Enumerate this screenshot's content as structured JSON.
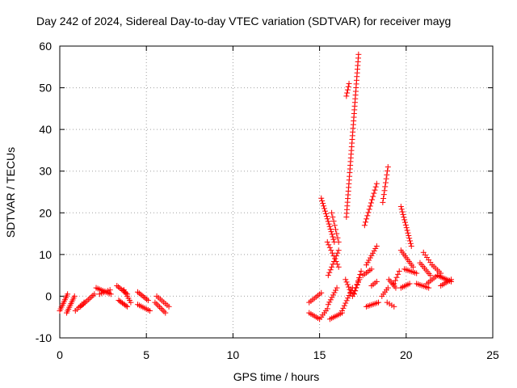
{
  "chart_data": {
    "type": "scatter",
    "title": "Day 242 of 2024, Sidereal Day-to-day VTEC variation (SDTVAR) for receiver mayg",
    "xlabel": "GPS time / hours",
    "ylabel": "SDTVAR / TECUs",
    "xlim": [
      0,
      25
    ],
    "ylim": [
      -10,
      60
    ],
    "xticks": [
      0,
      5,
      10,
      15,
      20,
      25
    ],
    "yticks": [
      -10,
      0,
      10,
      20,
      30,
      40,
      50,
      60
    ],
    "grid": true,
    "marker": "plus",
    "color": "#ff0000",
    "tracks": [
      {
        "x0": 0.0,
        "x1": 0.45,
        "y0": -3.5,
        "y1": 0.5,
        "n": 10
      },
      {
        "x0": 0.4,
        "x1": 0.85,
        "y0": -4.0,
        "y1": 0.0,
        "n": 10
      },
      {
        "x0": 0.9,
        "x1": 1.4,
        "y0": -3.5,
        "y1": -1.5,
        "n": 6
      },
      {
        "x0": 1.2,
        "x1": 2.0,
        "y0": -2.5,
        "y1": 0.5,
        "n": 10
      },
      {
        "x0": 2.1,
        "x1": 2.95,
        "y0": 2.0,
        "y1": 0.5,
        "n": 10
      },
      {
        "x0": 2.3,
        "x1": 2.9,
        "y0": 0.5,
        "y1": 1.5,
        "n": 6
      },
      {
        "x0": 3.3,
        "x1": 3.9,
        "y0": 2.5,
        "y1": 0.5,
        "n": 8
      },
      {
        "x0": 3.4,
        "x1": 3.9,
        "y0": -1.0,
        "y1": -2.5,
        "n": 8
      },
      {
        "x0": 3.7,
        "x1": 4.1,
        "y0": 1.5,
        "y1": -1.5,
        "n": 7
      },
      {
        "x0": 4.5,
        "x1": 5.1,
        "y0": 1.0,
        "y1": -1.0,
        "n": 8
      },
      {
        "x0": 4.5,
        "x1": 5.2,
        "y0": -2.0,
        "y1": -3.5,
        "n": 8
      },
      {
        "x0": 5.5,
        "x1": 6.1,
        "y0": -1.5,
        "y1": -4.0,
        "n": 8
      },
      {
        "x0": 5.6,
        "x1": 6.3,
        "y0": 0.0,
        "y1": -2.5,
        "n": 8
      },
      {
        "x0": 14.4,
        "x1": 15.1,
        "y0": -1.5,
        "y1": 0.8,
        "n": 8
      },
      {
        "x0": 14.4,
        "x1": 15.0,
        "y0": -4.0,
        "y1": -5.5,
        "n": 7
      },
      {
        "x0": 15.1,
        "x1": 15.85,
        "y0": 23.5,
        "y1": 13.0,
        "n": 18
      },
      {
        "x0": 15.45,
        "x1": 16.1,
        "y0": 13.0,
        "y1": 7.0,
        "n": 10
      },
      {
        "x0": 15.5,
        "x1": 16.1,
        "y0": 5.0,
        "y1": 11.0,
        "n": 10
      },
      {
        "x0": 15.7,
        "x1": 16.1,
        "y0": 20.0,
        "y1": 13.0,
        "n": 8
      },
      {
        "x0": 15.5,
        "x1": 16.0,
        "y0": -2.0,
        "y1": 2.0,
        "n": 8
      },
      {
        "x0": 15.6,
        "x1": 16.3,
        "y0": -5.5,
        "y1": -4.0,
        "n": 8
      },
      {
        "x0": 15.1,
        "x1": 15.45,
        "y0": -5.0,
        "y1": -3.0,
        "n": 5
      },
      {
        "x0": 16.3,
        "x1": 16.9,
        "y0": -3.5,
        "y1": 2.0,
        "n": 10
      },
      {
        "x0": 16.5,
        "x1": 16.8,
        "y0": 4.0,
        "y1": 1.0,
        "n": 6
      },
      {
        "x0": 16.9,
        "x1": 17.3,
        "y0": 0.0,
        "y1": 4.0,
        "n": 7
      },
      {
        "x0": 16.55,
        "x1": 17.25,
        "y0": 19.0,
        "y1": 58.0,
        "n": 45
      },
      {
        "x0": 16.55,
        "x1": 16.7,
        "y0": 48.0,
        "y1": 51.0,
        "n": 5
      },
      {
        "x0": 17.0,
        "x1": 17.4,
        "y0": 0.5,
        "y1": 6.0,
        "n": 8
      },
      {
        "x0": 17.6,
        "x1": 18.3,
        "y0": 17.0,
        "y1": 27.0,
        "n": 14
      },
      {
        "x0": 17.5,
        "x1": 18.0,
        "y0": 5.0,
        "y1": 6.5,
        "n": 6
      },
      {
        "x0": 17.7,
        "x1": 18.3,
        "y0": 7.5,
        "y1": 12.0,
        "n": 9
      },
      {
        "x0": 17.7,
        "x1": 18.4,
        "y0": -2.5,
        "y1": -1.5,
        "n": 8
      },
      {
        "x0": 18.0,
        "x1": 18.3,
        "y0": 2.5,
        "y1": 3.5,
        "n": 4
      },
      {
        "x0": 18.65,
        "x1": 18.95,
        "y0": 22.5,
        "y1": 31.0,
        "n": 10
      },
      {
        "x0": 18.6,
        "x1": 18.95,
        "y0": 0.0,
        "y1": 2.0,
        "n": 5
      },
      {
        "x0": 19.0,
        "x1": 19.4,
        "y0": 4.0,
        "y1": 2.0,
        "n": 6
      },
      {
        "x0": 18.9,
        "x1": 19.3,
        "y0": -1.5,
        "y1": -2.5,
        "n": 4
      },
      {
        "x0": 19.3,
        "x1": 19.6,
        "y0": 3.0,
        "y1": 6.0,
        "n": 5
      },
      {
        "x0": 19.7,
        "x1": 20.3,
        "y0": 21.5,
        "y1": 12.0,
        "n": 16
      },
      {
        "x0": 19.7,
        "x1": 20.4,
        "y0": 11.0,
        "y1": 7.0,
        "n": 10
      },
      {
        "x0": 19.7,
        "x1": 20.2,
        "y0": 2.0,
        "y1": 3.0,
        "n": 6
      },
      {
        "x0": 19.9,
        "x1": 20.6,
        "y0": 6.5,
        "y1": 5.5,
        "n": 8
      },
      {
        "x0": 20.6,
        "x1": 21.3,
        "y0": 3.0,
        "y1": 2.0,
        "n": 8
      },
      {
        "x0": 20.8,
        "x1": 21.4,
        "y0": 8.0,
        "y1": 5.0,
        "n": 8
      },
      {
        "x0": 21.0,
        "x1": 21.5,
        "y0": 10.5,
        "y1": 7.5,
        "n": 6
      },
      {
        "x0": 21.2,
        "x1": 21.8,
        "y0": 3.0,
        "y1": 5.0,
        "n": 7
      },
      {
        "x0": 21.5,
        "x1": 22.0,
        "y0": 7.5,
        "y1": 5.5,
        "n": 6
      },
      {
        "x0": 21.8,
        "x1": 22.6,
        "y0": 5.0,
        "y1": 3.5,
        "n": 10
      },
      {
        "x0": 22.0,
        "x1": 22.6,
        "y0": 2.5,
        "y1": 4.0,
        "n": 7
      }
    ]
  }
}
